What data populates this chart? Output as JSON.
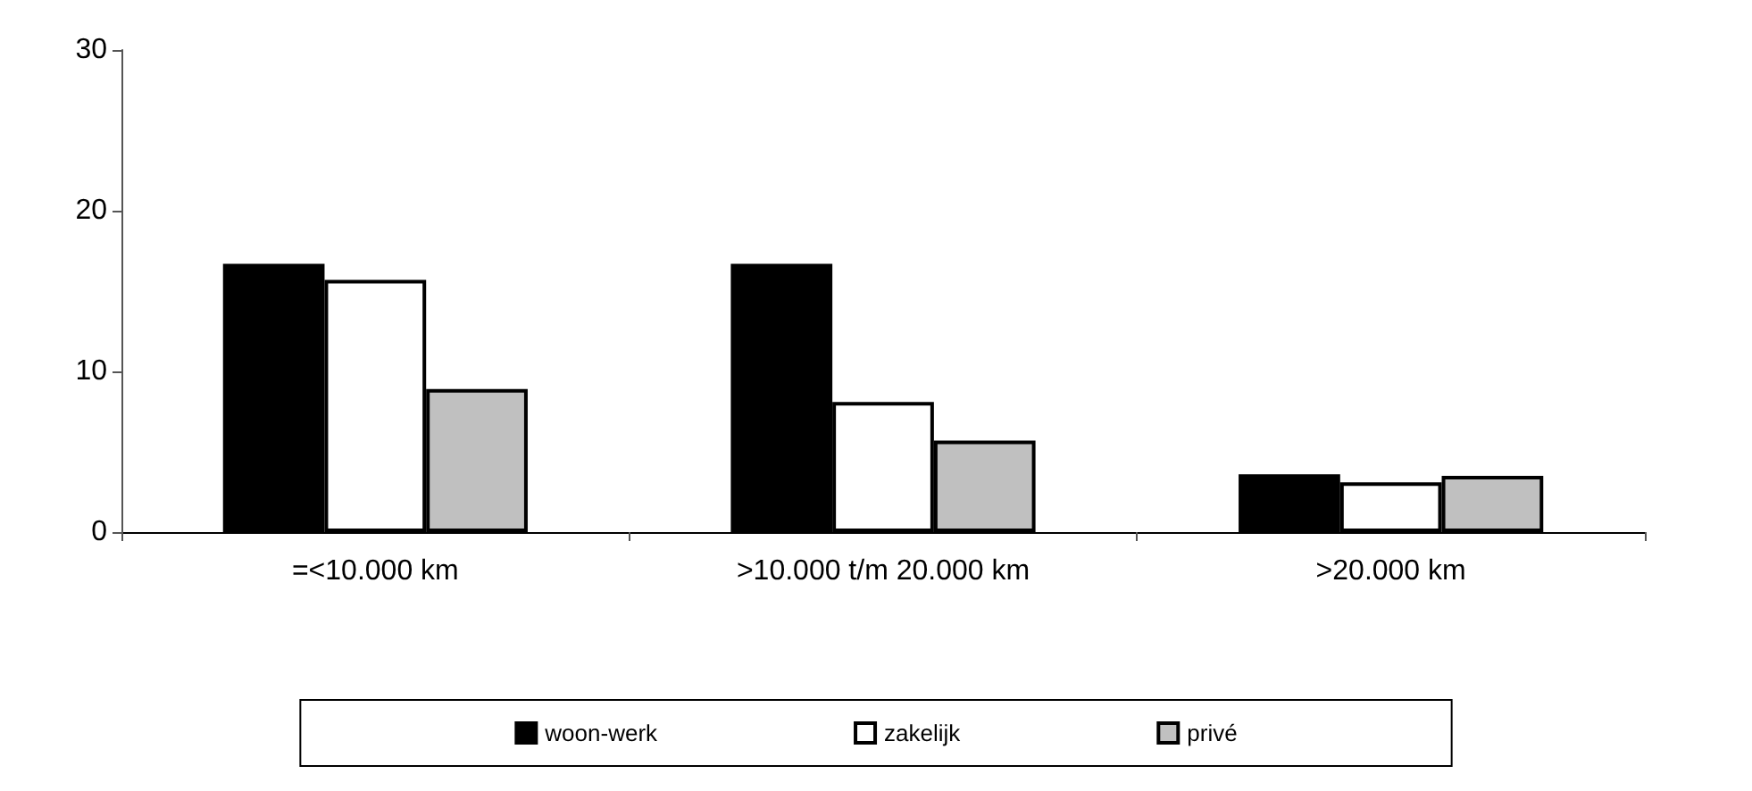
{
  "chart_data": {
    "type": "bar",
    "categories": [
      "=<10.000 km",
      ">10.000 t/m 20.000 km",
      ">20.000 km"
    ],
    "series": [
      {
        "name": "woon-werk",
        "color": "#000000",
        "values": [
          16.7,
          16.7,
          3.6
        ]
      },
      {
        "name": "zakelijk",
        "color": "#ffffff",
        "values": [
          15.7,
          8.1,
          3.1
        ]
      },
      {
        "name": "privé",
        "color": "#c0c0c0",
        "values": [
          8.9,
          5.7,
          3.5
        ]
      }
    ],
    "ylim": [
      0,
      30
    ],
    "yticks": [
      0,
      10,
      20,
      30
    ],
    "grid": false,
    "legend": "bottom"
  }
}
